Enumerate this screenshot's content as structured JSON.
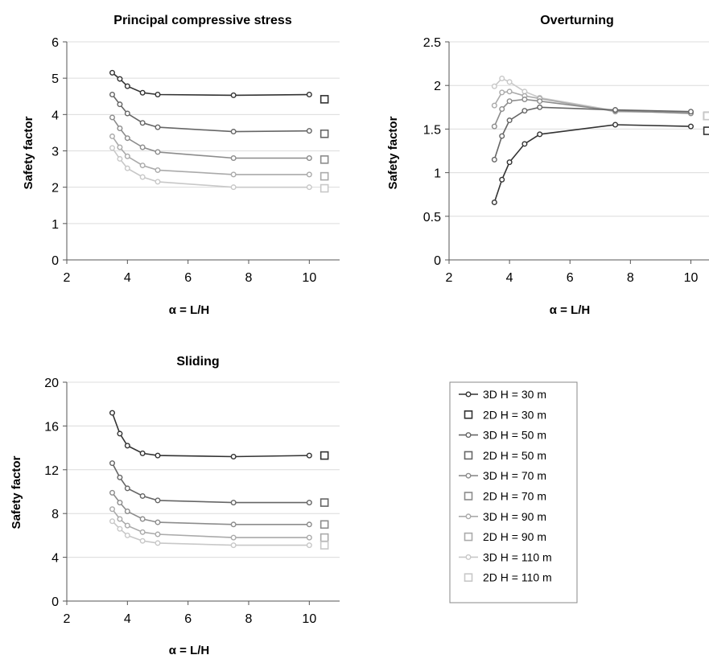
{
  "series_styles": [
    {
      "color": "#333333"
    },
    {
      "color": "#666666"
    },
    {
      "color": "#8c8c8c"
    },
    {
      "color": "#aaaaaa"
    },
    {
      "color": "#c8c8c8"
    }
  ],
  "legend": {
    "entries": [
      "3D  H = 30 m",
      "2D  H = 30 m",
      "3D  H = 50 m",
      "2D  H = 50 m",
      "3D  H = 70 m",
      "2D  H = 70 m",
      "3D  H = 90 m",
      "2D  H = 90 m",
      "3D  H = 110 m",
      "2D  H = 110 m"
    ]
  },
  "chart_data": [
    {
      "type": "line",
      "title": "Principal compressive stress",
      "xlabel": "α = L/H",
      "ylabel": "Safety factor",
      "xlim": [
        2,
        11
      ],
      "ylim": [
        0,
        6
      ],
      "xticks": [
        2,
        4,
        6,
        8,
        10
      ],
      "yticks": [
        0,
        1,
        2,
        3,
        4,
        5,
        6
      ],
      "x": [
        3.5,
        3.75,
        4,
        4.5,
        5,
        7.5,
        10
      ],
      "series_3d": [
        [
          5.15,
          4.98,
          4.78,
          4.6,
          4.55,
          4.53,
          4.55
        ],
        [
          4.55,
          4.28,
          4.03,
          3.77,
          3.65,
          3.53,
          3.55
        ],
        [
          3.92,
          3.62,
          3.35,
          3.1,
          2.97,
          2.8,
          2.8
        ],
        [
          3.4,
          3.1,
          2.85,
          2.6,
          2.47,
          2.35,
          2.35
        ],
        [
          3.08,
          2.78,
          2.52,
          2.28,
          2.15,
          2.0,
          2.0
        ]
      ],
      "x_2d": 10.5,
      "series_2d": [
        4.42,
        3.47,
        2.76,
        2.3,
        1.97
      ]
    },
    {
      "type": "line",
      "title": "Overturning",
      "xlabel": "α = L/H",
      "ylabel": "Safety factor",
      "xlim": [
        2,
        10.6
      ],
      "ylim": [
        0,
        2.5
      ],
      "xticks": [
        2,
        4,
        6,
        8,
        10
      ],
      "yticks": [
        0,
        0.5,
        1,
        1.5,
        2,
        2.5
      ],
      "x": [
        3.5,
        3.75,
        4,
        4.5,
        5,
        7.5,
        10
      ],
      "series_3d": [
        [
          0.66,
          0.92,
          1.12,
          1.33,
          1.44,
          1.55,
          1.53
        ],
        [
          1.15,
          1.42,
          1.6,
          1.71,
          1.75,
          1.72,
          1.7
        ],
        [
          1.53,
          1.73,
          1.82,
          1.84,
          1.82,
          1.71,
          1.68
        ],
        [
          1.77,
          1.92,
          1.93,
          1.88,
          1.85,
          1.7,
          1.69
        ],
        [
          1.99,
          2.08,
          2.04,
          1.93,
          1.86,
          1.71,
          1.68
        ]
      ],
      "x_2d": 10.55,
      "series_2d": [
        1.48,
        1.65,
        1.65,
        1.65,
        1.65
      ]
    },
    {
      "type": "line",
      "title": "Sliding",
      "xlabel": "α = L/H",
      "ylabel": "Safety factor",
      "xlim": [
        2,
        11
      ],
      "ylim": [
        0,
        20
      ],
      "xticks": [
        2,
        4,
        6,
        8,
        10
      ],
      "yticks": [
        0,
        4,
        8,
        12,
        16,
        20
      ],
      "x": [
        3.5,
        3.75,
        4,
        4.5,
        5,
        7.5,
        10
      ],
      "series_3d": [
        [
          17.2,
          15.3,
          14.2,
          13.5,
          13.3,
          13.2,
          13.3
        ],
        [
          12.6,
          11.3,
          10.3,
          9.6,
          9.2,
          9.0,
          9.0
        ],
        [
          9.9,
          9.0,
          8.2,
          7.5,
          7.2,
          7.0,
          7.0
        ],
        [
          8.4,
          7.5,
          6.9,
          6.3,
          6.1,
          5.8,
          5.8
        ],
        [
          7.3,
          6.6,
          6.0,
          5.5,
          5.3,
          5.1,
          5.1
        ]
      ],
      "x_2d": 10.5,
      "series_2d": [
        13.3,
        9.0,
        7.0,
        5.8,
        5.1
      ]
    }
  ]
}
